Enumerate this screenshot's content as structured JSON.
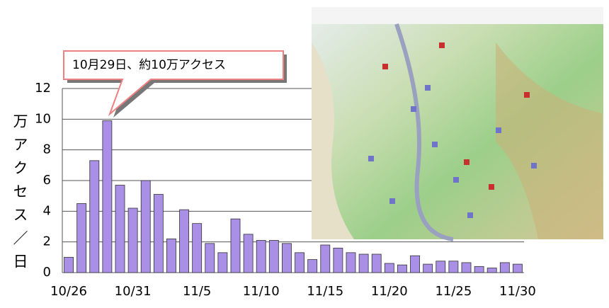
{
  "chart_data": {
    "type": "bar",
    "y_label": "万アクセス／日",
    "annotation": "10月29日、約10万アクセス",
    "categories": [
      "10/26",
      null,
      null,
      null,
      null,
      "10/31",
      null,
      null,
      null,
      null,
      "11/5",
      null,
      null,
      null,
      null,
      "11/10",
      null,
      null,
      null,
      null,
      "11/15",
      null,
      null,
      null,
      null,
      "11/20",
      null,
      null,
      null,
      null,
      "11/25",
      null,
      null,
      null,
      null,
      "11/30"
    ],
    "values": [
      1.0,
      4.5,
      7.3,
      9.9,
      5.7,
      4.2,
      6.0,
      5.1,
      2.2,
      4.1,
      3.2,
      1.9,
      1.3,
      3.5,
      2.5,
      2.1,
      2.1,
      1.9,
      1.3,
      0.85,
      1.8,
      1.6,
      1.3,
      1.2,
      1.2,
      0.6,
      0.5,
      1.1,
      0.55,
      0.75,
      0.75,
      0.65,
      0.4,
      0.3,
      0.65,
      0.55
    ],
    "color": "#a98fe6",
    "ylim": [
      0,
      12
    ],
    "yticks": [
      0,
      2,
      4,
      6,
      8,
      10,
      12
    ],
    "grid": true
  }
}
